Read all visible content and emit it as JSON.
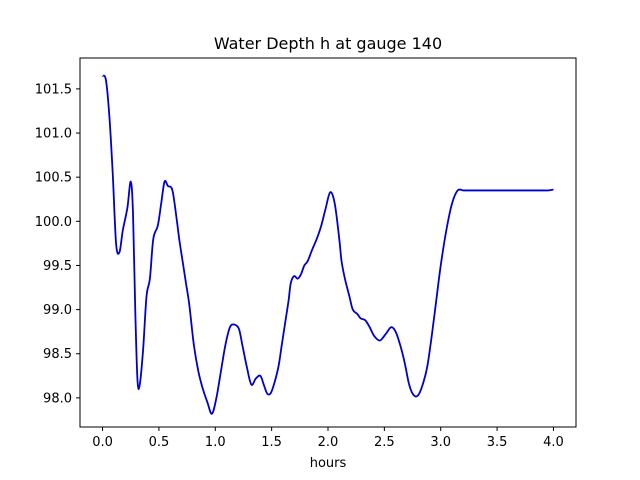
{
  "chart_data": {
    "type": "line",
    "title": "Water Depth h at gauge 140",
    "xlabel": "hours",
    "ylabel": "",
    "xlim": [
      -0.2,
      4.2
    ],
    "ylim": [
      97.67,
      101.85
    ],
    "xticks": [
      0.0,
      0.5,
      1.0,
      1.5,
      2.0,
      2.5,
      3.0,
      3.5,
      4.0
    ],
    "xtick_labels": [
      "0.0",
      "0.5",
      "1.0",
      "1.5",
      "2.0",
      "2.5",
      "3.0",
      "3.5",
      "4.0"
    ],
    "yticks": [
      98.0,
      98.5,
      99.0,
      99.5,
      100.0,
      100.5,
      101.0,
      101.5
    ],
    "ytick_labels": [
      "98.0",
      "98.5",
      "99.0",
      "99.5",
      "100.0",
      "100.5",
      "101.0",
      "101.5"
    ],
    "grid": false,
    "series": [
      {
        "color": "#0000cc",
        "x": [
          0.0,
          0.03,
          0.06,
          0.09,
          0.12,
          0.15,
          0.18,
          0.22,
          0.25,
          0.27,
          0.29,
          0.31,
          0.33,
          0.36,
          0.39,
          0.42,
          0.45,
          0.49,
          0.52,
          0.55,
          0.58,
          0.62,
          0.66,
          0.68,
          0.71,
          0.74,
          0.77,
          0.81,
          0.85,
          0.89,
          0.93,
          0.97,
          1.01,
          1.05,
          1.09,
          1.13,
          1.17,
          1.21,
          1.24,
          1.28,
          1.32,
          1.36,
          1.4,
          1.43,
          1.46,
          1.49,
          1.52,
          1.56,
          1.59,
          1.62,
          1.65,
          1.67,
          1.7,
          1.73,
          1.76,
          1.79,
          1.82,
          1.86,
          1.9,
          1.94,
          1.98,
          2.02,
          2.06,
          2.1,
          2.12,
          2.15,
          2.19,
          2.22,
          2.26,
          2.29,
          2.33,
          2.37,
          2.41,
          2.46,
          2.51,
          2.56,
          2.6,
          2.64,
          2.68,
          2.72,
          2.76,
          2.8,
          2.84,
          2.88,
          2.92,
          2.96,
          3.0,
          3.05,
          3.1,
          3.15,
          3.2,
          3.24,
          3.28,
          3.32,
          3.35,
          3.38,
          3.42,
          3.46,
          3.5,
          3.54,
          3.58,
          3.62,
          3.66,
          3.7,
          3.75,
          3.8,
          3.85,
          3.9,
          3.95,
          4.0
        ],
        "y": [
          101.65,
          101.6,
          101.2,
          100.55,
          99.75,
          99.65,
          99.9,
          100.15,
          100.45,
          100.1,
          99.0,
          98.2,
          98.15,
          98.55,
          99.15,
          99.35,
          99.8,
          99.95,
          100.2,
          100.45,
          100.4,
          100.35,
          100.0,
          99.8,
          99.55,
          99.3,
          99.05,
          98.6,
          98.3,
          98.1,
          97.95,
          97.82,
          98.0,
          98.3,
          98.6,
          98.8,
          98.83,
          98.78,
          98.6,
          98.35,
          98.15,
          98.22,
          98.25,
          98.15,
          98.05,
          98.05,
          98.15,
          98.35,
          98.6,
          98.85,
          99.1,
          99.3,
          99.38,
          99.35,
          99.4,
          99.5,
          99.55,
          99.68,
          99.8,
          99.95,
          100.15,
          100.33,
          100.2,
          99.8,
          99.55,
          99.35,
          99.15,
          99.0,
          98.95,
          98.9,
          98.88,
          98.8,
          98.7,
          98.65,
          98.72,
          98.8,
          98.75,
          98.6,
          98.4,
          98.15,
          98.03,
          98.03,
          98.15,
          98.35,
          98.7,
          99.1,
          99.5,
          99.9,
          100.2,
          100.35,
          100.35,
          100.35,
          100.35,
          100.35,
          100.35,
          100.35,
          100.35,
          100.35,
          100.35,
          100.35,
          100.35,
          100.35,
          100.35,
          100.35,
          100.35,
          100.35,
          100.35,
          100.35,
          100.35,
          100.36
        ]
      }
    ]
  }
}
